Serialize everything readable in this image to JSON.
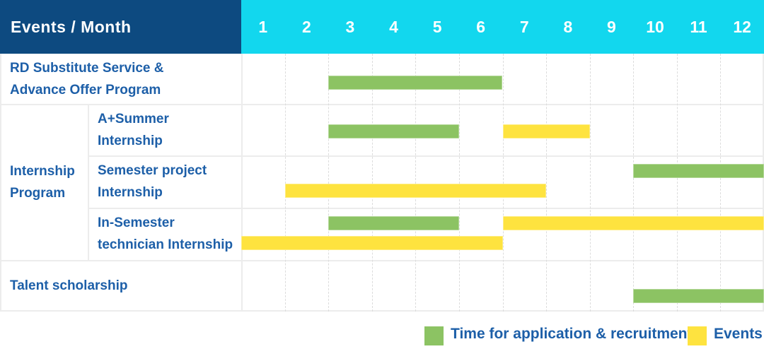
{
  "header": {
    "title": "Events / Month"
  },
  "colors": {
    "header_blue": "#0d4a80",
    "header_cyan": "#12d7ee",
    "application_green": "#8cc363",
    "event_yellow": "#fee33f",
    "label_text_blue": "#1d5fa8"
  },
  "labels": {
    "rd": [
      "RD Substitute Service &",
      "Advance Offer Program"
    ],
    "internship_group": [
      "Internship",
      "Program"
    ],
    "a_summer": [
      "A+Summer",
      "Internship"
    ],
    "semester_project": [
      "Semester project",
      "Internship"
    ],
    "in_semester": [
      "In-Semester",
      "technician Internship"
    ],
    "talent": [
      "Talent scholarship"
    ]
  },
  "chart_data": {
    "type": "gantt",
    "title": "Events / Month",
    "months": [
      "1",
      "2",
      "3",
      "4",
      "5",
      "6",
      "7",
      "8",
      "9",
      "10",
      "11",
      "12"
    ],
    "x_range": [
      1,
      12
    ],
    "grid": "dashed-vertical, solid-horizontal",
    "legend_position": "bottom-right",
    "legend": [
      {
        "key": "application",
        "label": "Time for application & recruitment",
        "color": "#8cc363"
      },
      {
        "key": "event",
        "label": "Events",
        "color": "#fee33f"
      }
    ],
    "rows": [
      {
        "id": "rd",
        "label": "RD Substitute Service & Advance Offer Program",
        "group": null,
        "bars": [
          {
            "type": "application",
            "start_month": 3,
            "end_month": 6,
            "lane": "single"
          }
        ]
      },
      {
        "id": "a-summer",
        "label": "A+Summer Internship",
        "group": "Internship Program",
        "bars": [
          {
            "type": "application",
            "start_month": 3,
            "end_month": 5,
            "lane": "single"
          },
          {
            "type": "event",
            "start_month": 7,
            "end_month": 8,
            "lane": "single"
          }
        ]
      },
      {
        "id": "semester-project",
        "label": "Semester project Internship",
        "group": "Internship Program",
        "bars": [
          {
            "type": "application",
            "start_month": 10,
            "end_month": 12,
            "lane": "upper"
          },
          {
            "type": "event",
            "start_month": 2,
            "end_month": 7,
            "lane": "lower"
          }
        ]
      },
      {
        "id": "in-semester",
        "label": "In-Semester technician Internship",
        "group": "Internship Program",
        "bars": [
          {
            "type": "application",
            "start_month": 3,
            "end_month": 5,
            "lane": "upper"
          },
          {
            "type": "event",
            "start_month": 7,
            "end_month": 12,
            "lane": "upper"
          },
          {
            "type": "event",
            "start_month": 1,
            "end_month": 6,
            "lane": "lower"
          }
        ]
      },
      {
        "id": "talent",
        "label": "Talent scholarship",
        "group": null,
        "bars": [
          {
            "type": "application",
            "start_month": 10,
            "end_month": 12,
            "lane": "single"
          }
        ]
      }
    ]
  }
}
